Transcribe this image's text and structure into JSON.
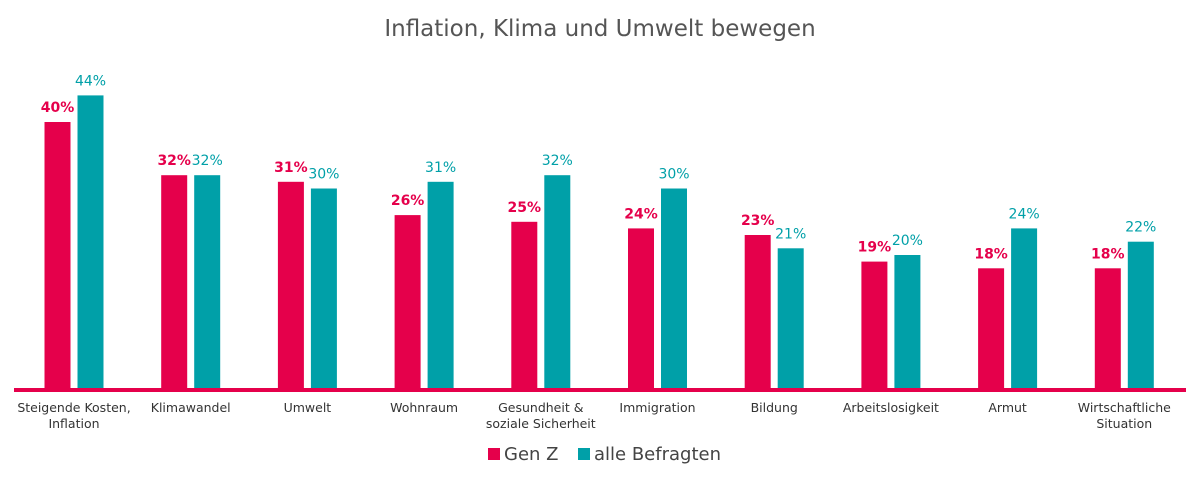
{
  "colors": {
    "gen_z": "#e5004b",
    "all": "#00a0a8",
    "axis": "#e5004b",
    "text": "#333333"
  },
  "chart_data": {
    "type": "bar",
    "title": "Inflation, Klima und Umwelt bewegen",
    "categories": [
      [
        "Steigende Kosten,",
        "Inflation"
      ],
      [
        "Klimawandel"
      ],
      [
        "Umwelt"
      ],
      [
        "Wohnraum"
      ],
      [
        "Gesundheit &",
        "soziale Sicherheit"
      ],
      [
        "Immigration"
      ],
      [
        "Bildung"
      ],
      [
        "Arbeitslosigkeit"
      ],
      [
        "Armut"
      ],
      [
        "Wirtschaftliche",
        "Situation"
      ]
    ],
    "series": [
      {
        "name": "Gen Z",
        "values": [
          40,
          32,
          31,
          26,
          25,
          24,
          23,
          19,
          18,
          18
        ]
      },
      {
        "name": "alle Befragten",
        "values": [
          44,
          32,
          30,
          31,
          32,
          30,
          21,
          20,
          24,
          22
        ]
      }
    ],
    "value_suffix": "%",
    "ylim": [
      0,
      44
    ],
    "grid": false,
    "legend_position": "bottom"
  }
}
